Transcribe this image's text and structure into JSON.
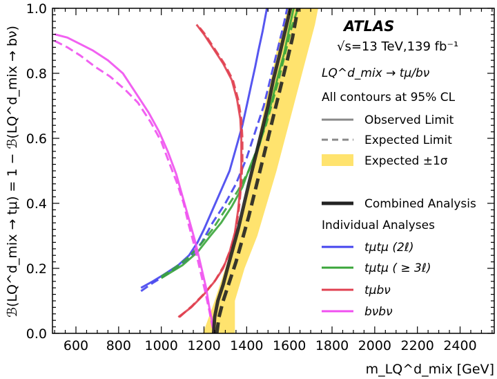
{
  "chart_data": {
    "type": "line",
    "experiment_label": "ATLAS",
    "energy_label": "√s=13 TeV,139 fb⁻¹",
    "process_label": "LQ^d_mix → tμ/bν",
    "contour_note": "All contours at 95% CL",
    "ylabel": "ℬ(LQ^d_mix → tμ) = 1 − ℬ(LQ^d_mix → bν)",
    "xlabel": "m_LQ^d_mix [GeV]",
    "xlim": [
      490,
      2560
    ],
    "ylim": [
      0.0,
      1.0
    ],
    "xticks": [
      600,
      800,
      1000,
      1200,
      1400,
      1600,
      1800,
      2000,
      2200,
      2400
    ],
    "xtick_labels": [
      "600",
      "800",
      "1000",
      "1200",
      "1400",
      "1600",
      "1800",
      "2000",
      "2200",
      "2400"
    ],
    "yticks": [
      0.0,
      0.2,
      0.4,
      0.6,
      0.8,
      1.0
    ],
    "ytick_labels": [
      "0.0",
      "0.2",
      "0.4",
      "0.6",
      "0.8",
      "1.0"
    ],
    "legend": {
      "style_items": [
        {
          "label": "Observed Limit",
          "kind": "solid",
          "color": "#888888"
        },
        {
          "label": "Expected Limit",
          "kind": "dashed",
          "color": "#888888"
        },
        {
          "label": "Expected ±1σ",
          "kind": "band",
          "color": "#ffe36e"
        }
      ],
      "combined_label": "Combined Analysis",
      "individual_header": "Individual Analyses",
      "analysis_items": [
        {
          "label": "tμtμ (2ℓ)",
          "color": "#4444ee"
        },
        {
          "label": "tμtμ ( ≥ 3ℓ)",
          "color": "#3aa53a"
        },
        {
          "label": "tμbν",
          "color": "#e04050"
        },
        {
          "label": "bνbν",
          "color": "#f050f0"
        }
      ]
    },
    "band": {
      "name": "Expected ±1σ",
      "color": "#ffe36e",
      "lower": [
        [
          1195,
          0.0
        ],
        [
          1250,
          0.1
        ],
        [
          1300,
          0.2
        ],
        [
          1350,
          0.3
        ],
        [
          1390,
          0.4
        ],
        [
          1420,
          0.5
        ],
        [
          1455,
          0.6
        ],
        [
          1485,
          0.7
        ],
        [
          1520,
          0.8
        ],
        [
          1550,
          0.9
        ],
        [
          1575,
          0.95
        ],
        [
          1590,
          1.0
        ]
      ],
      "upper": [
        [
          1345,
          0.0
        ],
        [
          1345,
          0.1
        ],
        [
          1390,
          0.2
        ],
        [
          1450,
          0.3
        ],
        [
          1495,
          0.4
        ],
        [
          1540,
          0.5
        ],
        [
          1580,
          0.6
        ],
        [
          1620,
          0.7
        ],
        [
          1660,
          0.8
        ],
        [
          1700,
          0.9
        ],
        [
          1720,
          0.95
        ],
        [
          1735,
          1.0
        ]
      ]
    },
    "series": [
      {
        "name": "tμtμ (2ℓ)",
        "color": "#4444ee",
        "dashed": false,
        "width": 3,
        "points": [
          [
            905,
            0.14
          ],
          [
            960,
            0.16
          ],
          [
            1010,
            0.18
          ],
          [
            1080,
            0.21
          ],
          [
            1130,
            0.24
          ],
          [
            1170,
            0.28
          ],
          [
            1200,
            0.32
          ],
          [
            1240,
            0.38
          ],
          [
            1280,
            0.44
          ],
          [
            1320,
            0.5
          ],
          [
            1350,
            0.57
          ],
          [
            1380,
            0.64
          ],
          [
            1400,
            0.7
          ],
          [
            1420,
            0.76
          ],
          [
            1440,
            0.82
          ],
          [
            1455,
            0.87
          ],
          [
            1475,
            0.93
          ],
          [
            1495,
            1.0
          ]
        ]
      },
      {
        "name": "tμtμ (2ℓ)",
        "color": "#4444ee",
        "dashed": true,
        "width": 3,
        "points": [
          [
            905,
            0.13
          ],
          [
            960,
            0.155
          ],
          [
            1010,
            0.175
          ],
          [
            1070,
            0.2
          ],
          [
            1130,
            0.23
          ],
          [
            1190,
            0.28
          ],
          [
            1240,
            0.34
          ],
          [
            1300,
            0.4
          ],
          [
            1350,
            0.46
          ],
          [
            1400,
            0.54
          ],
          [
            1440,
            0.62
          ],
          [
            1480,
            0.7
          ],
          [
            1510,
            0.78
          ],
          [
            1540,
            0.86
          ],
          [
            1570,
            0.94
          ],
          [
            1590,
            1.0
          ]
        ]
      },
      {
        "name": "tμtμ ( ≥ 3ℓ)",
        "color": "#3aa53a",
        "dashed": false,
        "width": 3,
        "points": [
          [
            1000,
            0.17
          ],
          [
            1050,
            0.19
          ],
          [
            1100,
            0.21
          ],
          [
            1170,
            0.25
          ],
          [
            1230,
            0.3
          ],
          [
            1280,
            0.34
          ],
          [
            1330,
            0.39
          ],
          [
            1380,
            0.45
          ],
          [
            1420,
            0.52
          ],
          [
            1460,
            0.58
          ],
          [
            1490,
            0.65
          ],
          [
            1520,
            0.72
          ],
          [
            1550,
            0.8
          ],
          [
            1575,
            0.86
          ],
          [
            1600,
            0.94
          ],
          [
            1620,
            1.0
          ]
        ]
      },
      {
        "name": "tμtμ ( ≥ 3ℓ)",
        "color": "#3aa53a",
        "dashed": true,
        "width": 3,
        "points": [
          [
            1000,
            0.175
          ],
          [
            1060,
            0.2
          ],
          [
            1120,
            0.23
          ],
          [
            1180,
            0.27
          ],
          [
            1240,
            0.32
          ],
          [
            1300,
            0.38
          ],
          [
            1360,
            0.44
          ],
          [
            1410,
            0.5
          ],
          [
            1450,
            0.57
          ],
          [
            1490,
            0.64
          ],
          [
            1520,
            0.71
          ],
          [
            1550,
            0.78
          ],
          [
            1580,
            0.86
          ],
          [
            1610,
            0.94
          ],
          [
            1640,
            1.0
          ]
        ]
      },
      {
        "name": "tμbν",
        "color": "#e04050",
        "dashed": false,
        "width": 3,
        "points": [
          [
            1080,
            0.05
          ],
          [
            1140,
            0.08
          ],
          [
            1200,
            0.12
          ],
          [
            1250,
            0.16
          ],
          [
            1290,
            0.2
          ],
          [
            1320,
            0.25
          ],
          [
            1345,
            0.31
          ],
          [
            1360,
            0.38
          ],
          [
            1370,
            0.45
          ],
          [
            1375,
            0.52
          ],
          [
            1375,
            0.6
          ],
          [
            1370,
            0.66
          ],
          [
            1355,
            0.72
          ],
          [
            1330,
            0.78
          ],
          [
            1290,
            0.83
          ],
          [
            1240,
            0.88
          ],
          [
            1200,
            0.92
          ],
          [
            1165,
            0.95
          ]
        ]
      },
      {
        "name": "tμbν",
        "color": "#e04050",
        "dashed": true,
        "width": 3,
        "points": [
          [
            1085,
            0.05
          ],
          [
            1145,
            0.085
          ],
          [
            1205,
            0.125
          ],
          [
            1255,
            0.165
          ],
          [
            1295,
            0.21
          ],
          [
            1325,
            0.26
          ],
          [
            1350,
            0.32
          ],
          [
            1365,
            0.39
          ],
          [
            1375,
            0.46
          ],
          [
            1380,
            0.53
          ],
          [
            1380,
            0.6
          ],
          [
            1375,
            0.66
          ],
          [
            1360,
            0.72
          ],
          [
            1335,
            0.78
          ],
          [
            1295,
            0.83
          ],
          [
            1245,
            0.88
          ],
          [
            1205,
            0.92
          ],
          [
            1168,
            0.95
          ]
        ]
      },
      {
        "name": "bνbν",
        "color": "#f050f0",
        "dashed": false,
        "width": 3,
        "points": [
          [
            500,
            0.92
          ],
          [
            560,
            0.91
          ],
          [
            620,
            0.89
          ],
          [
            680,
            0.87
          ],
          [
            750,
            0.84
          ],
          [
            820,
            0.8
          ],
          [
            880,
            0.74
          ],
          [
            940,
            0.68
          ],
          [
            990,
            0.62
          ],
          [
            1030,
            0.56
          ],
          [
            1070,
            0.49
          ],
          [
            1100,
            0.42
          ],
          [
            1130,
            0.35
          ],
          [
            1160,
            0.28
          ],
          [
            1185,
            0.21
          ],
          [
            1210,
            0.14
          ],
          [
            1225,
            0.08
          ],
          [
            1240,
            0.03
          ],
          [
            1250,
            0.0
          ]
        ]
      },
      {
        "name": "bνbν",
        "color": "#f050f0",
        "dashed": true,
        "width": 3,
        "points": [
          [
            500,
            0.9
          ],
          [
            560,
            0.88
          ],
          [
            620,
            0.855
          ],
          [
            690,
            0.82
          ],
          [
            760,
            0.79
          ],
          [
            830,
            0.75
          ],
          [
            890,
            0.71
          ],
          [
            950,
            0.65
          ],
          [
            1000,
            0.59
          ],
          [
            1040,
            0.52
          ],
          [
            1075,
            0.46
          ],
          [
            1105,
            0.4
          ],
          [
            1130,
            0.33
          ],
          [
            1155,
            0.27
          ],
          [
            1180,
            0.2
          ],
          [
            1205,
            0.13
          ],
          [
            1225,
            0.07
          ],
          [
            1240,
            0.02
          ],
          [
            1250,
            0.0
          ]
        ]
      },
      {
        "name": "Combined Analysis",
        "color": "#222222",
        "dashed": false,
        "width": 5,
        "points": [
          [
            1245,
            0.0
          ],
          [
            1250,
            0.05
          ],
          [
            1265,
            0.1
          ],
          [
            1290,
            0.15
          ],
          [
            1310,
            0.2
          ],
          [
            1335,
            0.26
          ],
          [
            1360,
            0.32
          ],
          [
            1385,
            0.39
          ],
          [
            1410,
            0.46
          ],
          [
            1440,
            0.54
          ],
          [
            1470,
            0.62
          ],
          [
            1500,
            0.7
          ],
          [
            1525,
            0.78
          ],
          [
            1555,
            0.86
          ],
          [
            1580,
            0.93
          ],
          [
            1605,
            1.0
          ]
        ]
      },
      {
        "name": "Combined Analysis",
        "color": "#222222",
        "dashed": true,
        "width": 5,
        "points": [
          [
            1260,
            0.0
          ],
          [
            1270,
            0.05
          ],
          [
            1290,
            0.1
          ],
          [
            1320,
            0.16
          ],
          [
            1350,
            0.22
          ],
          [
            1380,
            0.29
          ],
          [
            1410,
            0.36
          ],
          [
            1440,
            0.44
          ],
          [
            1470,
            0.52
          ],
          [
            1500,
            0.6
          ],
          [
            1530,
            0.68
          ],
          [
            1560,
            0.76
          ],
          [
            1590,
            0.84
          ],
          [
            1615,
            0.91
          ],
          [
            1640,
            1.0
          ]
        ]
      }
    ]
  }
}
